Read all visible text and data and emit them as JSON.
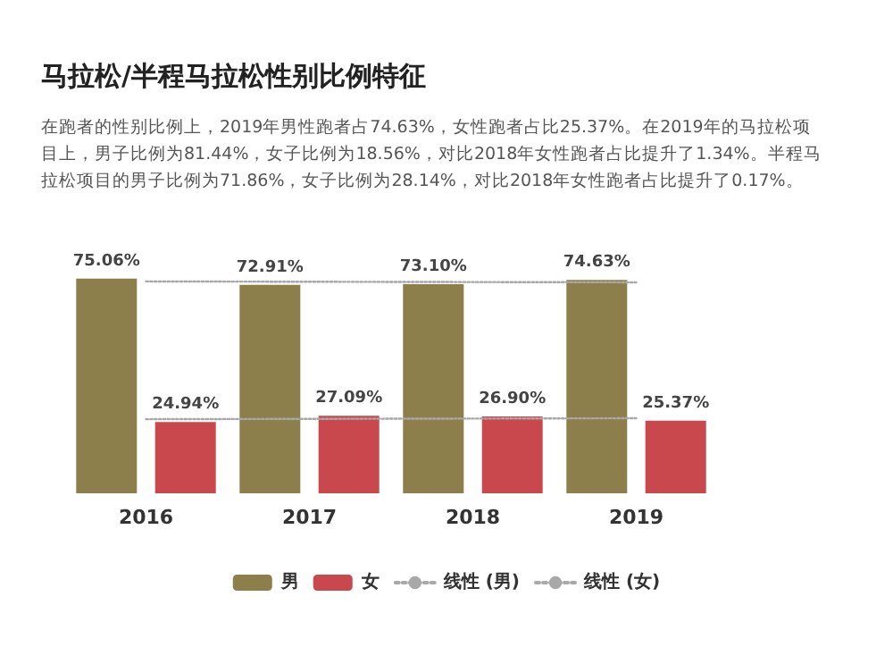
{
  "chart_data": {
    "type": "bar",
    "title": "马拉松/半程马拉松性别比例特征",
    "subtitle": "在跑者的性别比例上，2019年男性跑者占74.63%，女性跑者占比25.37%。在2019年的马拉松项目上，男子比例为81.44%，女子比例为18.56%，对比2018年女性跑者占比提升了1.34%。半程马拉松项目的男子比例为71.86%，女子比例为28.14%，对比2018年女性跑者占比提升了0.17%。",
    "categories": [
      "2016",
      "2017",
      "2018",
      "2019"
    ],
    "tick_labels": "x",
    "series": [
      {
        "name": "男",
        "color": "#8c7f4c",
        "values": [
          75.06,
          72.91,
          73.1,
          74.63
        ],
        "value_labels": [
          "75.06%",
          "72.91%",
          "73.10%",
          "74.63%"
        ]
      },
      {
        "name": "女",
        "color": "#c9484d",
        "values": [
          24.94,
          27.09,
          26.9,
          25.37
        ],
        "value_labels": [
          "24.94%",
          "27.09%",
          "26.90%",
          "25.37%"
        ]
      },
      {
        "name": "线性 (男)",
        "type": "line",
        "color": "#a8a8a8",
        "values": [
          74.09,
          73.98,
          73.87,
          73.76
        ],
        "line_style": "dotted",
        "marker": "none"
      },
      {
        "name": "线性 (女)",
        "type": "line",
        "color": "#a8a8a8",
        "values": [
          25.91,
          26.02,
          26.13,
          26.24
        ],
        "line_style": "dotted",
        "marker": "none"
      }
    ],
    "legend": "bottom"
  }
}
